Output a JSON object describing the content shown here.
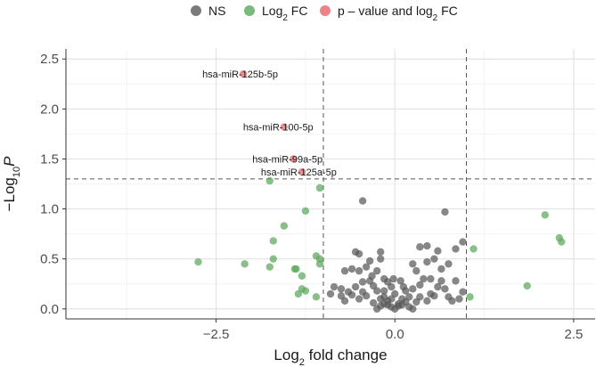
{
  "chart_data": {
    "type": "scatter",
    "title": "",
    "xlabel": {
      "main": "Log",
      "sub": "2",
      "rest": " fold change"
    },
    "ylabel": {
      "prefix": "−Log",
      "sub": "10",
      "italic": "P"
    },
    "xlim": [
      -4.6,
      2.8
    ],
    "ylim": [
      -0.1,
      2.6
    ],
    "x_ticks": [
      -2.5,
      0.0,
      2.5
    ],
    "x_tick_labels": [
      "−2.5",
      "0.0",
      "2.5"
    ],
    "y_ticks": [
      0.0,
      0.5,
      1.0,
      1.5,
      2.0,
      2.5
    ],
    "y_tick_labels": [
      "0.0",
      "0.5",
      "1.0",
      "1.5",
      "2.0",
      "2.5"
    ],
    "grid": true,
    "legend_position": "top",
    "thresholds": {
      "log2fc": [
        -1,
        1
      ],
      "neg_log10_p": 1.3
    },
    "series": [
      {
        "name": "NS",
        "color": "#595959",
        "points": [
          [
            -0.55,
            0.57
          ],
          [
            -0.5,
            0.55
          ],
          [
            -0.35,
            0.48
          ],
          [
            -0.2,
            0.5
          ],
          [
            -0.2,
            0.57
          ],
          [
            -0.6,
            0.4
          ],
          [
            -0.45,
            0.27
          ],
          [
            -0.35,
            0.28
          ],
          [
            -0.3,
            0.23
          ],
          [
            -0.25,
            0.18
          ],
          [
            -0.15,
            0.18
          ],
          [
            -0.1,
            0.27
          ],
          [
            -0.65,
            0.17
          ],
          [
            -0.75,
            0.13
          ],
          [
            -0.85,
            0.22
          ],
          [
            -0.9,
            0.15
          ],
          [
            -0.7,
            0.38
          ],
          [
            -0.5,
            0.38
          ],
          [
            -0.4,
            0.42
          ],
          [
            -0.25,
            0.38
          ],
          [
            -0.15,
            0.3
          ],
          [
            -0.05,
            0.22
          ],
          [
            0.0,
            0.15
          ],
          [
            -0.05,
            0.1
          ],
          [
            -0.1,
            0.08
          ],
          [
            -0.2,
            0.1
          ],
          [
            -0.3,
            0.06
          ],
          [
            -0.4,
            0.13
          ],
          [
            -0.5,
            0.1
          ],
          [
            -0.6,
            0.14
          ],
          [
            -0.7,
            0.08
          ],
          [
            -0.75,
            0.2
          ],
          [
            -0.55,
            0.22
          ],
          [
            -0.45,
            0.17
          ],
          [
            -0.15,
            0.12
          ],
          [
            0.05,
            0.05
          ],
          [
            0.1,
            0.1
          ],
          [
            0.15,
            0.18
          ],
          [
            0.2,
            0.12
          ],
          [
            0.25,
            0.2
          ],
          [
            0.3,
            0.07
          ],
          [
            0.35,
            0.12
          ],
          [
            0.45,
            0.08
          ],
          [
            0.5,
            0.15
          ],
          [
            0.55,
            0.13
          ],
          [
            0.6,
            0.22
          ],
          [
            0.65,
            0.28
          ],
          [
            0.7,
            0.2
          ],
          [
            0.75,
            0.12
          ],
          [
            0.8,
            0.08
          ],
          [
            0.9,
            0.1
          ],
          [
            0.95,
            0.17
          ],
          [
            0.85,
            0.28
          ],
          [
            0.5,
            0.3
          ],
          [
            0.4,
            0.3
          ],
          [
            0.3,
            0.38
          ],
          [
            0.25,
            0.45
          ],
          [
            0.45,
            0.47
          ],
          [
            0.55,
            0.5
          ],
          [
            0.65,
            0.4
          ],
          [
            0.75,
            0.45
          ],
          [
            0.85,
            0.6
          ],
          [
            0.95,
            0.67
          ],
          [
            0.35,
            0.62
          ],
          [
            0.45,
            0.63
          ],
          [
            0.6,
            0.58
          ],
          [
            0.7,
            0.97
          ],
          [
            -0.45,
            1.08
          ],
          [
            -0.05,
            0.02
          ],
          [
            0.0,
            0.0
          ],
          [
            0.05,
            0.03
          ],
          [
            0.1,
            0.04
          ],
          [
            -0.1,
            0.04
          ],
          [
            0.15,
            0.07
          ],
          [
            -0.15,
            0.05
          ],
          [
            0.2,
            0.02
          ],
          [
            -0.2,
            0.03
          ],
          [
            0.25,
            0.0
          ],
          [
            -0.25,
            0.0
          ],
          [
            0.12,
            0.22
          ],
          [
            -0.02,
            0.3
          ],
          [
            0.08,
            0.28
          ],
          [
            -0.32,
            0.33
          ],
          [
            0.35,
            0.24
          ]
        ]
      },
      {
        "name": "Log₂ FC",
        "color": "#5ba85b",
        "points": [
          [
            -2.75,
            0.47
          ],
          [
            -2.1,
            0.45
          ],
          [
            -1.75,
            0.42
          ],
          [
            -1.7,
            0.5
          ],
          [
            -1.7,
            0.68
          ],
          [
            -1.55,
            0.83
          ],
          [
            -1.75,
            1.28
          ],
          [
            -1.4,
            0.4
          ],
          [
            -1.38,
            0.4
          ],
          [
            -1.3,
            0.33
          ],
          [
            -1.3,
            0.2
          ],
          [
            -1.35,
            0.15
          ],
          [
            -1.25,
            0.18
          ],
          [
            -1.25,
            0.98
          ],
          [
            -1.1,
            0.53
          ],
          [
            -1.05,
            0.5
          ],
          [
            -1.05,
            0.45
          ],
          [
            -1.1,
            0.12
          ],
          [
            -1.05,
            1.21
          ],
          [
            1.1,
            0.6
          ],
          [
            1.05,
            0.12
          ],
          [
            1.85,
            0.23
          ],
          [
            2.1,
            0.94
          ],
          [
            2.3,
            0.71
          ],
          [
            2.33,
            0.67
          ]
        ]
      },
      {
        "name": "p – value and log₂ FC",
        "color": "#e8646a",
        "points": [
          [
            -2.12,
            2.35
          ],
          [
            -1.55,
            1.82
          ],
          [
            -1.42,
            1.5
          ],
          [
            -1.3,
            1.37
          ]
        ]
      }
    ],
    "point_labels": [
      {
        "text": "hsa-miR-125b-5p",
        "x": -2.12,
        "y": 2.35
      },
      {
        "text": "hsa-miR-100-5p",
        "x": -1.55,
        "y": 1.82
      },
      {
        "text": "hsa-miR-99a-5p",
        "x": -1.42,
        "y": 1.5
      },
      {
        "text": "hsa-miR-125a-5p",
        "x": -1.3,
        "y": 1.37
      }
    ],
    "legend": [
      {
        "label": "NS",
        "color": "#595959"
      },
      {
        "label_main": "Log",
        "label_sub": "2",
        "label_rest": " FC",
        "color": "#5ba85b"
      },
      {
        "label_main": "p – value and log",
        "label_sub": "2",
        "label_rest": " FC",
        "color": "#e8646a"
      }
    ]
  }
}
